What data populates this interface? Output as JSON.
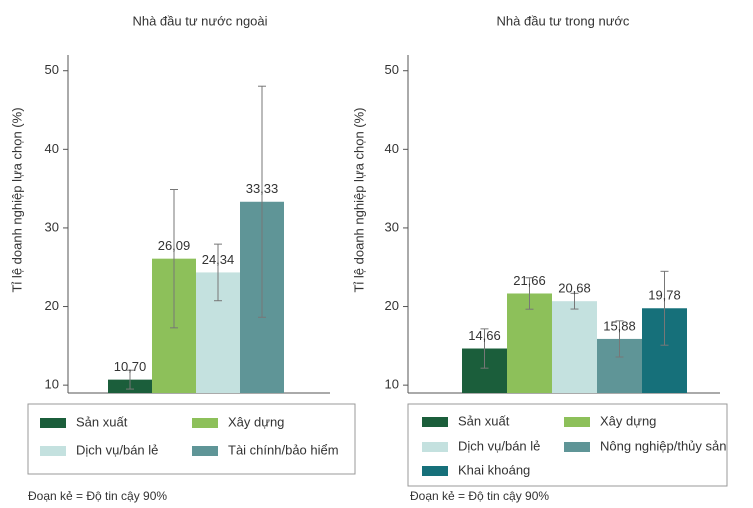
{
  "chart_data": [
    {
      "type": "bar",
      "title": "Nhà đầu tư nước ngoài",
      "ylabel": "Tỉ lệ doanh nghiệp lựa chọn (%)",
      "categories": [
        "Sản xuất",
        "Xây dựng",
        "Dịch vụ/bán lẻ",
        "Tài chính/bảo hiểm"
      ],
      "values": [
        10.7,
        26.09,
        24.34,
        33.33
      ],
      "value_labels": [
        "10,70",
        "26,09",
        "24,34",
        "33,33"
      ],
      "errors": [
        1.2,
        8.8,
        3.6,
        14.7
      ],
      "colors": [
        "#1b5e3b",
        "#8dc05a",
        "#c4e1df",
        "#5f9597"
      ],
      "ylim": [
        9,
        52
      ],
      "yticks": [
        10,
        20,
        30,
        40,
        50
      ],
      "note": "Đoạn kẻ = Độ tin cậy 90%"
    },
    {
      "type": "bar",
      "title": "Nhà đầu tư trong nước",
      "ylabel": "Tỉ lệ doanh nghiệp lựa chọn (%)",
      "categories": [
        "Sản xuất",
        "Xây dựng",
        "Dịch vụ/bán lẻ",
        "Nông nghiệp/thủy sản",
        "Khai khoáng"
      ],
      "values": [
        14.66,
        21.66,
        20.68,
        15.88,
        19.78
      ],
      "value_labels": [
        "14,66",
        "21,66",
        "20,68",
        "15,88",
        "19,78"
      ],
      "errors": [
        2.5,
        2.0,
        1.0,
        2.3,
        4.7
      ],
      "colors": [
        "#1b5e3b",
        "#8dc05a",
        "#c4e1df",
        "#5f9597",
        "#16707a"
      ],
      "ylim": [
        9,
        52
      ],
      "yticks": [
        10,
        20,
        30,
        40,
        50
      ],
      "note": "Đoạn kẻ = Độ tin cậy 90%"
    }
  ]
}
